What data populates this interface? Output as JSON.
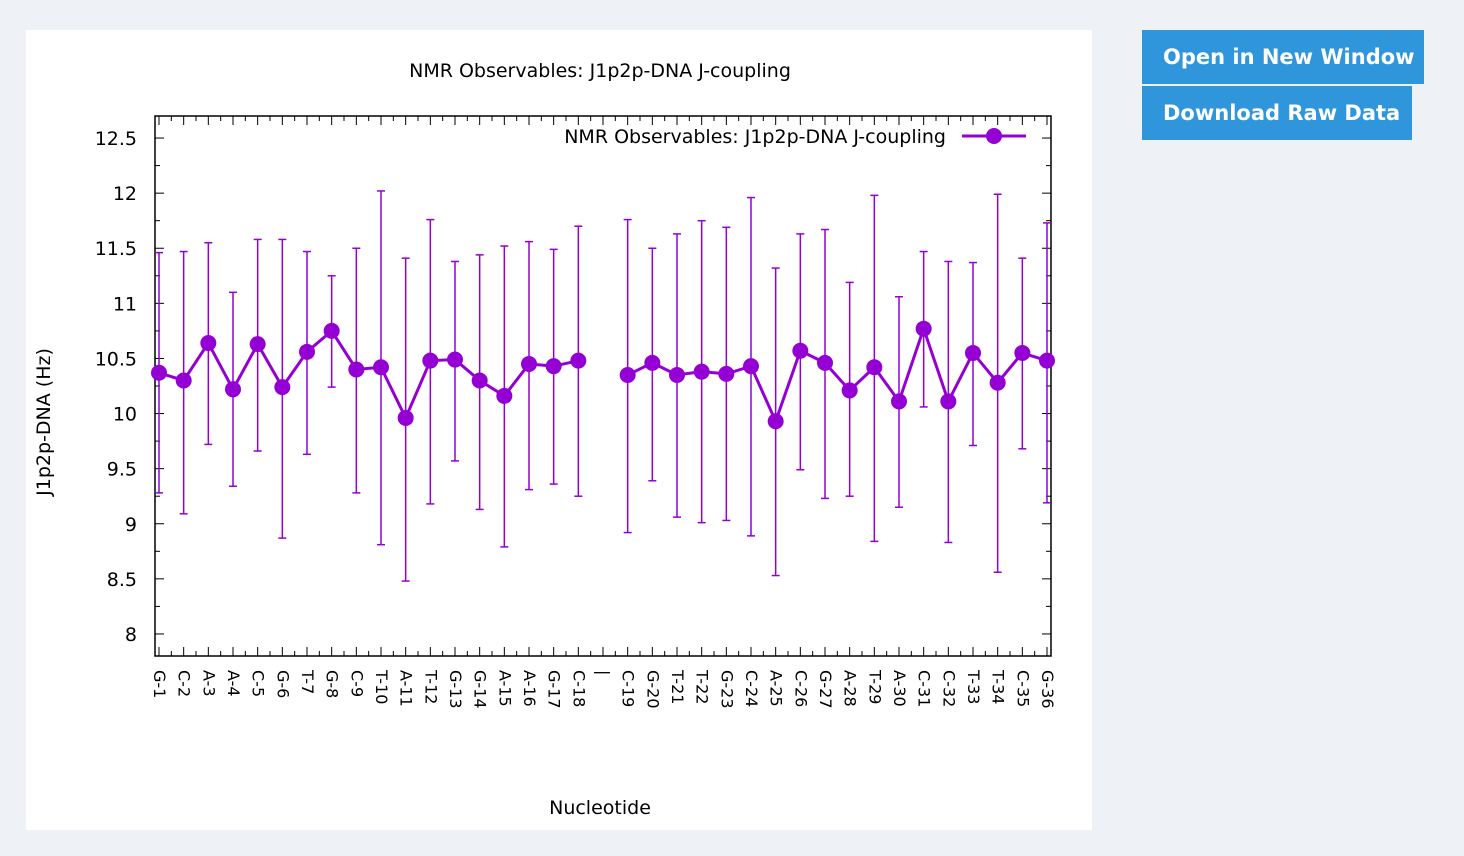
{
  "actions": {
    "open_label": "Open in New Window",
    "download_label": "Download Raw Data"
  },
  "colors": {
    "series": "#9400d3",
    "button_bg": "#3096dc",
    "page_bg": "#eef1f5"
  },
  "chart_data": {
    "type": "line",
    "title": "NMR Observables: J1p2p-DNA J-coupling",
    "xlabel": "Nucleotide",
    "ylabel": "J1p2p-DNA (Hz)",
    "ylim": [
      7.8,
      12.7
    ],
    "yticks": [
      8,
      8.5,
      9,
      9.5,
      10,
      10.5,
      11,
      11.5,
      12,
      12.5
    ],
    "legend_position": "top-right",
    "grid": false,
    "error_bars": true,
    "categories": [
      "G-1",
      "C-2",
      "A-3",
      "A-4",
      "C-5",
      "G-6",
      "T-7",
      "G-8",
      "C-9",
      "T-10",
      "A-11",
      "T-12",
      "G-13",
      "G-14",
      "A-15",
      "A-16",
      "G-17",
      "C-18",
      "|",
      "C-19",
      "G-20",
      "T-21",
      "T-22",
      "G-23",
      "C-24",
      "A-25",
      "C-26",
      "G-27",
      "A-28",
      "T-29",
      "A-30",
      "C-31",
      "C-32",
      "T-33",
      "T-34",
      "C-35",
      "G-36"
    ],
    "series": [
      {
        "name": "NMR Observables: J1p2p-DNA J-coupling",
        "values": [
          10.37,
          10.3,
          10.64,
          10.22,
          10.63,
          10.24,
          10.56,
          10.75,
          10.4,
          10.42,
          9.96,
          10.48,
          10.49,
          10.3,
          10.16,
          10.45,
          10.43,
          10.48,
          null,
          10.35,
          10.46,
          10.35,
          10.38,
          10.36,
          10.43,
          9.93,
          10.57,
          10.46,
          10.21,
          10.42,
          10.11,
          10.77,
          10.11,
          10.55,
          10.28,
          10.55,
          10.48
        ],
        "err_low": [
          9.28,
          9.09,
          9.72,
          9.34,
          9.66,
          8.87,
          9.63,
          10.24,
          9.28,
          8.81,
          8.48,
          9.18,
          9.57,
          9.13,
          8.79,
          9.31,
          9.36,
          9.25,
          null,
          8.92,
          9.39,
          9.06,
          9.01,
          9.03,
          8.89,
          8.53,
          9.49,
          9.23,
          9.25,
          8.84,
          9.15,
          10.06,
          8.83,
          9.71,
          8.56,
          9.68,
          9.19
        ],
        "err_high": [
          11.46,
          11.47,
          11.55,
          11.1,
          11.58,
          11.58,
          11.47,
          11.25,
          11.5,
          12.02,
          11.41,
          11.76,
          11.38,
          11.44,
          11.52,
          11.56,
          11.49,
          11.7,
          null,
          11.76,
          11.5,
          11.63,
          11.75,
          11.69,
          11.96,
          11.32,
          11.63,
          11.67,
          11.19,
          11.98,
          11.06,
          11.47,
          11.38,
          11.37,
          11.99,
          11.41,
          11.73
        ]
      }
    ]
  }
}
